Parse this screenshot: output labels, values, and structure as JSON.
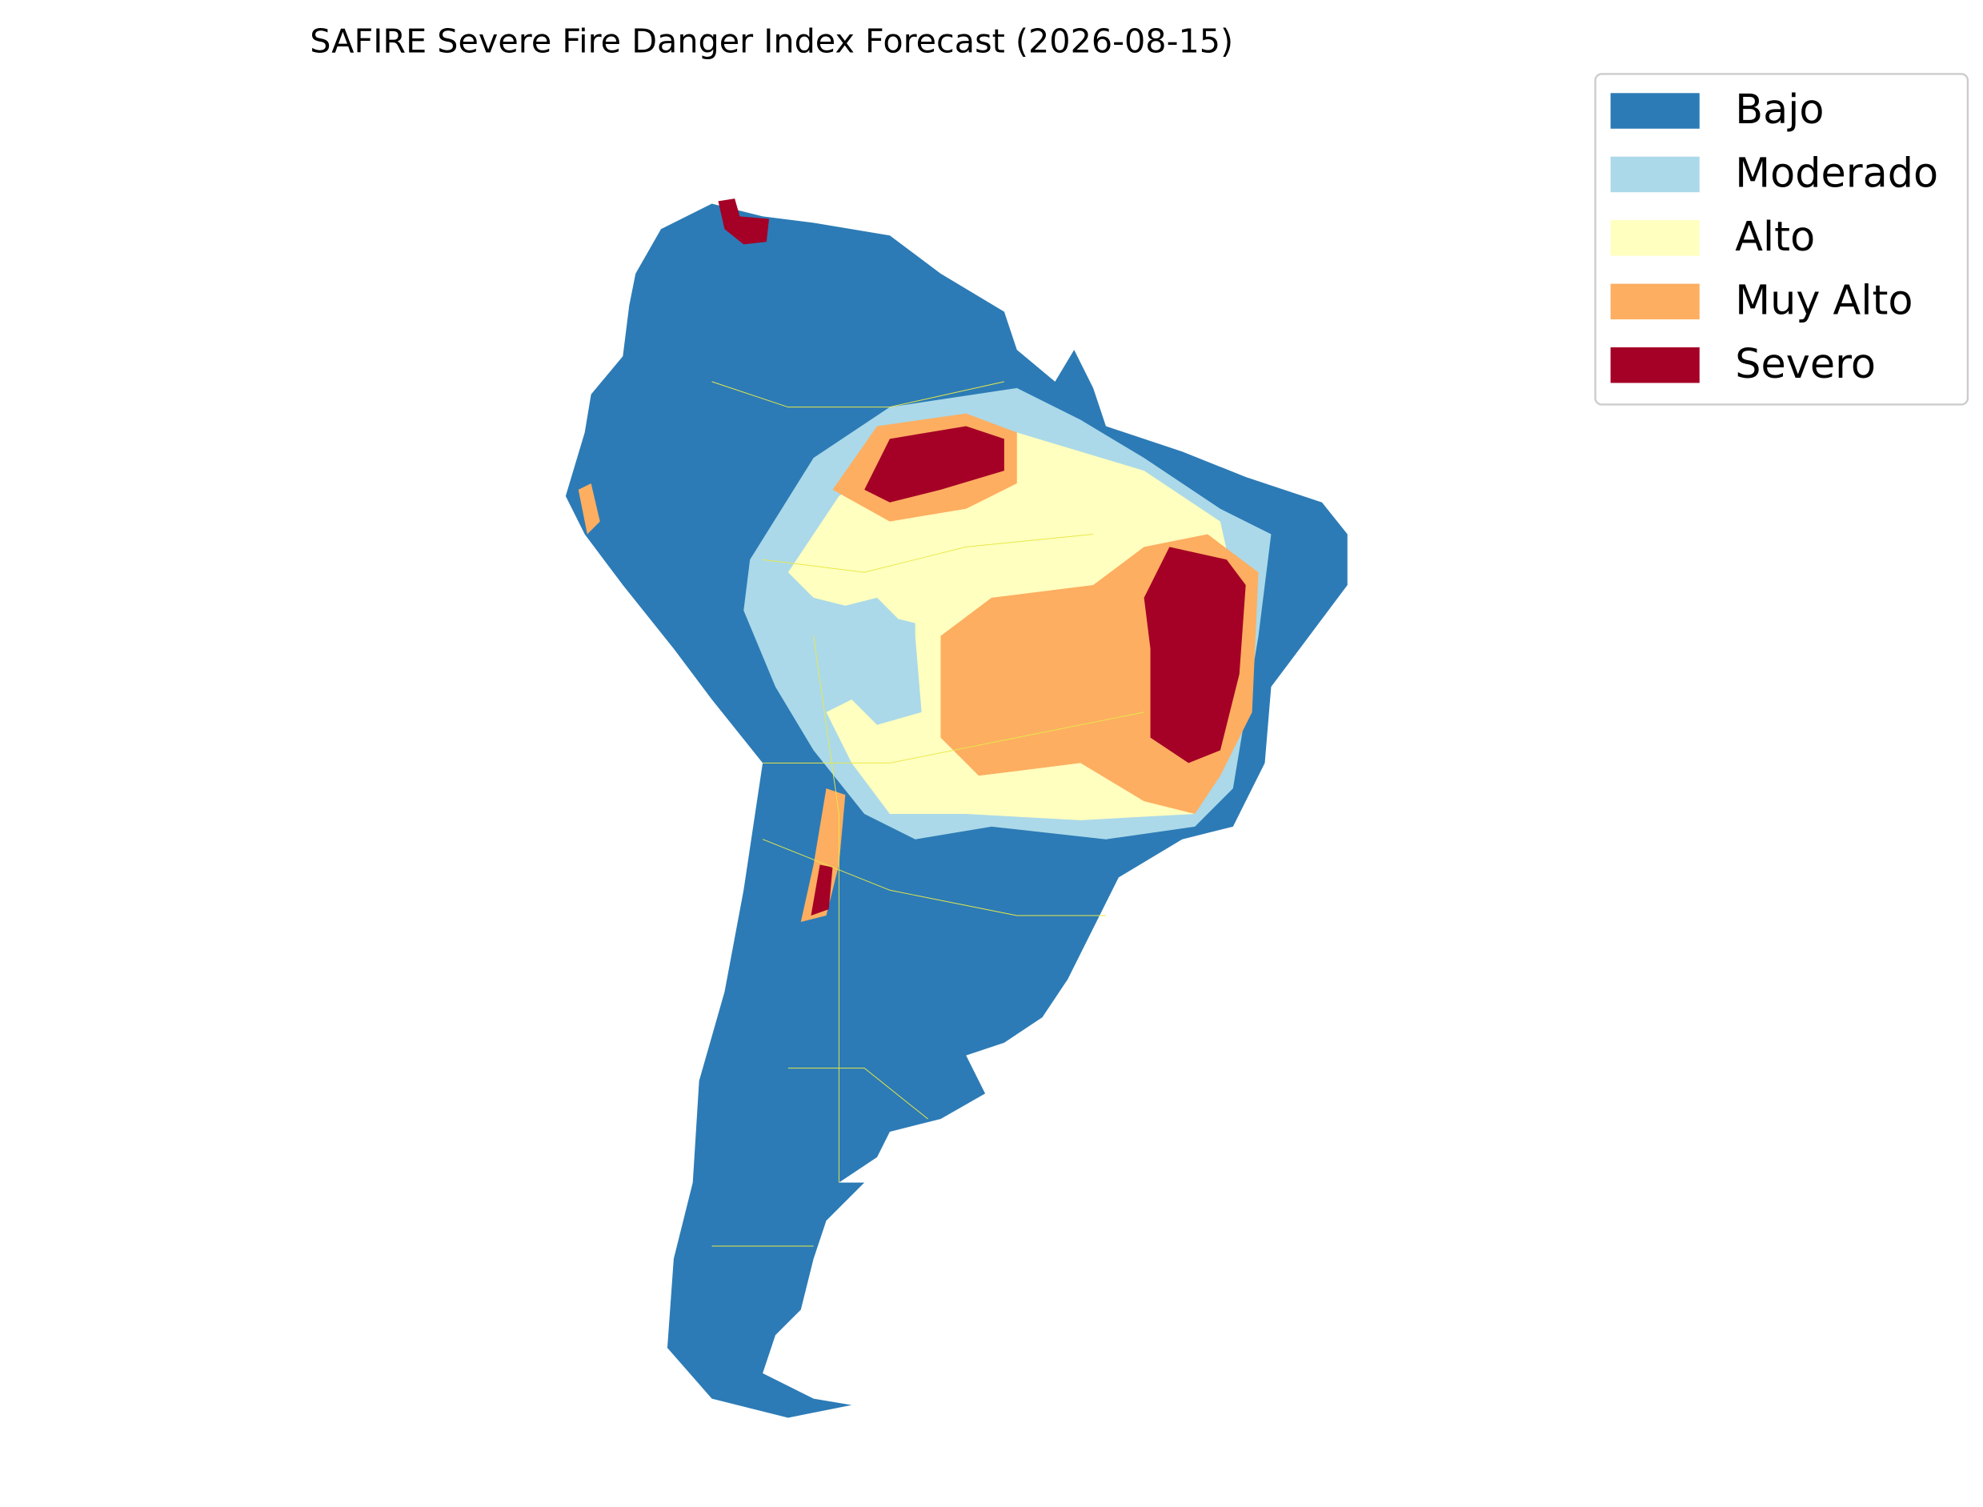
{
  "title": "SAFIRE Severe Fire Danger Index Forecast (2026-08-15)",
  "legend": [
    {
      "label": "Bajo",
      "color": "#2c7bb6"
    },
    {
      "label": "Moderado",
      "color": "#abd9e9"
    },
    {
      "label": "Alto",
      "color": "#ffffbf"
    },
    {
      "label": "Muy Alto",
      "color": "#fdae61"
    },
    {
      "label": "Severo",
      "color": "#a50026"
    }
  ]
}
